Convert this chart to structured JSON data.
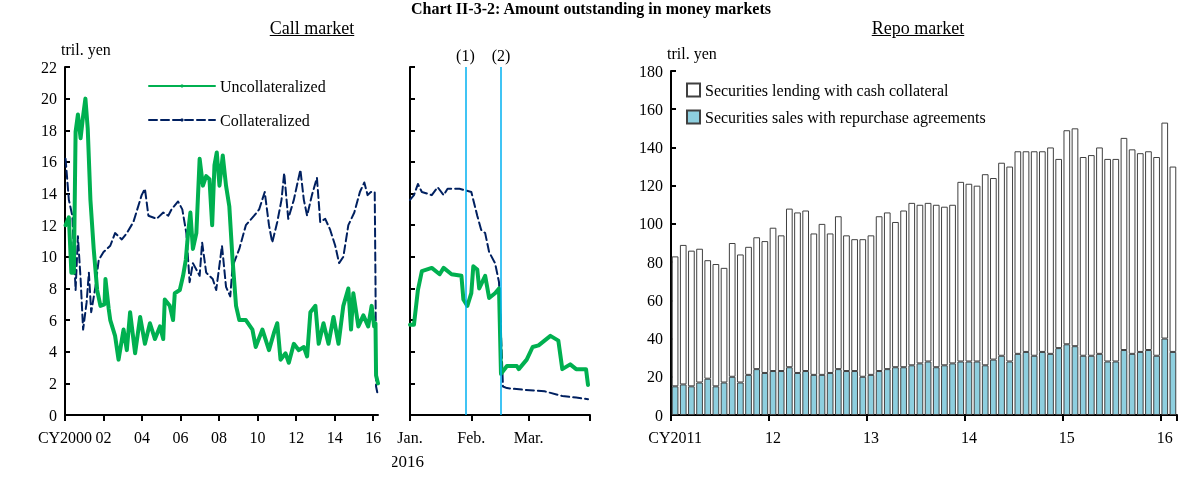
{
  "chart_data": [
    {
      "type": "line",
      "subtitle": "Call market",
      "ylabel": "tril. yen",
      "xlim": [
        2000,
        2016.25
      ],
      "xticks": [
        {
          "value": 2000,
          "label": "CY2000"
        },
        {
          "value": 2002,
          "label": "02"
        },
        {
          "value": 2004,
          "label": "04"
        },
        {
          "value": 2006,
          "label": "06"
        },
        {
          "value": 2008,
          "label": "08"
        },
        {
          "value": 2010,
          "label": "10"
        },
        {
          "value": 2012,
          "label": "12"
        },
        {
          "value": 2014,
          "label": "14"
        },
        {
          "value": 2016,
          "label": "16"
        }
      ],
      "ylim": [
        0,
        22
      ],
      "yticks": [
        0,
        2,
        4,
        6,
        8,
        10,
        12,
        14,
        16,
        18,
        20,
        22
      ],
      "grid": false,
      "legend": "top right",
      "marker": "none",
      "series": [
        {
          "name": "Uncollateralized",
          "color": "#00b050",
          "line_style": "solid",
          "x": [
            2000.03,
            2000.2,
            2000.33,
            2000.46,
            2000.55,
            2000.67,
            2000.81,
            2000.94,
            2001.06,
            2001.18,
            2001.32,
            2001.49,
            2001.67,
            2001.84,
            2002.05,
            2002.1,
            2002.27,
            2002.35,
            2002.6,
            2002.78,
            2003.04,
            2003.21,
            2003.38,
            2003.64,
            2003.9,
            2004.15,
            2004.41,
            2004.67,
            2004.93,
            2005.1,
            2005.18,
            2005.44,
            2005.61,
            2005.7,
            2005.96,
            2006.13,
            2006.27,
            2006.39,
            2006.51,
            2006.64,
            2006.82,
            2006.99,
            2007.16,
            2007.33,
            2007.5,
            2007.64,
            2007.76,
            2007.88,
            2008.02,
            2008.19,
            2008.36,
            2008.53,
            2008.7,
            2008.88,
            2009.05,
            2009.39,
            2009.73,
            2009.9,
            2010.25,
            2010.59,
            2010.85,
            2011.02,
            2011.19,
            2011.45,
            2011.62,
            2011.88,
            2012.14,
            2012.4,
            2012.57,
            2012.74,
            2013.0,
            2013.17,
            2013.42,
            2013.68,
            2013.94,
            2014.2,
            2014.45,
            2014.71,
            2014.85,
            2014.97,
            2015.23,
            2015.49,
            2015.74,
            2015.92,
            2016.05,
            2016.12,
            2016.15,
            2016.25
          ],
          "values": [
            12.0,
            12.5,
            9.0,
            9.0,
            17.9,
            19.0,
            17.5,
            18.9,
            20.0,
            18.1,
            13.6,
            10.5,
            7.9,
            6.9,
            7.0,
            8.6,
            6.7,
            6.0,
            5.0,
            3.5,
            5.4,
            4.1,
            6.5,
            3.9,
            6.2,
            4.5,
            5.8,
            4.8,
            5.6,
            4.8,
            7.3,
            6.9,
            6.0,
            7.7,
            7.9,
            8.8,
            9.8,
            11.5,
            12.8,
            10.5,
            11.5,
            16.2,
            14.5,
            15.1,
            14.9,
            12.0,
            15.8,
            16.6,
            14.5,
            16.4,
            14.5,
            13.2,
            9.8,
            6.9,
            6.0,
            6.0,
            5.4,
            4.3,
            5.4,
            4.1,
            5.2,
            5.8,
            3.5,
            3.9,
            3.3,
            4.5,
            4.1,
            4.3,
            3.7,
            6.5,
            6.9,
            4.5,
            5.8,
            4.5,
            6.2,
            4.5,
            6.9,
            8.0,
            5.4,
            7.7,
            5.6,
            6.3,
            5.6,
            6.9,
            5.6,
            5.8,
            2.5,
            2.0
          ]
        },
        {
          "name": "Collateralized",
          "color": "#002060",
          "line_style": "dashed",
          "x": [
            2000.03,
            2000.2,
            2000.38,
            2000.55,
            2000.67,
            2000.81,
            2000.94,
            2001.12,
            2001.24,
            2001.36,
            2001.58,
            2001.75,
            2002.0,
            2002.35,
            2002.6,
            2002.95,
            2003.21,
            2003.55,
            2003.98,
            2004.15,
            2004.33,
            2004.76,
            2005.1,
            2005.36,
            2005.53,
            2005.87,
            2006.09,
            2006.3,
            2006.47,
            2006.64,
            2006.99,
            2007.12,
            2007.33,
            2007.67,
            2007.85,
            2008.15,
            2008.36,
            2008.58,
            2008.7,
            2009.05,
            2009.39,
            2009.82,
            2010.08,
            2010.37,
            2010.59,
            2010.76,
            2011.02,
            2011.24,
            2011.38,
            2011.59,
            2011.88,
            2012.22,
            2012.4,
            2012.57,
            2012.82,
            2013.08,
            2013.25,
            2013.51,
            2013.77,
            2014.03,
            2014.23,
            2014.45,
            2014.71,
            2015.02,
            2015.31,
            2015.54,
            2015.71,
            2015.88,
            2016.08,
            2016.12,
            2016.15,
            2016.25
          ],
          "values": [
            16.2,
            13.6,
            12.6,
            7.9,
            11.3,
            8.6,
            5.4,
            7.1,
            9.0,
            6.5,
            8.1,
            9.8,
            10.3,
            10.7,
            11.5,
            11.1,
            11.5,
            12.2,
            13.9,
            14.3,
            12.6,
            12.4,
            12.8,
            12.6,
            13.0,
            13.5,
            13.0,
            11.5,
            8.4,
            9.6,
            8.8,
            10.9,
            9.0,
            8.6,
            7.9,
            10.7,
            8.1,
            7.5,
            9.4,
            10.5,
            12.0,
            12.6,
            13.0,
            14.1,
            12.0,
            10.9,
            12.2,
            13.6,
            15.3,
            12.4,
            13.6,
            15.5,
            13.6,
            12.6,
            13.9,
            15.0,
            12.2,
            12.4,
            11.7,
            10.7,
            9.6,
            10.0,
            12.0,
            12.8,
            14.1,
            14.7,
            13.9,
            14.1,
            14.1,
            8.4,
            1.8,
            1.2
          ]
        }
      ]
    },
    {
      "type": "line",
      "title": "Chart II-3-2: Amount outstanding in money markets",
      "xlabel": "2016",
      "xlim": [
        "2016-01-01",
        "2016-04-01"
      ],
      "xticks": [
        {
          "value": "2016-01-01",
          "label": "Jan."
        },
        {
          "value": "2016-02-01",
          "label": "Feb."
        },
        {
          "value": "2016-03-01",
          "label": "Mar."
        },
        {
          "value": "2016-04-01",
          "label": null
        }
      ],
      "ylim": [
        0,
        22
      ],
      "yticks": [
        0,
        2,
        4,
        6,
        8,
        10,
        12,
        14,
        16,
        18,
        20,
        22
      ],
      "tick_labels": "x",
      "grid": false,
      "marker": "none",
      "ref_lines": [
        {
          "axis": "x",
          "value": "2016-01-29",
          "label": "(1)",
          "color": "#00b0f0"
        },
        {
          "axis": "x",
          "value": "2016-02-16",
          "label": "(2)",
          "color": "#00b0f0"
        }
      ],
      "series": [
        {
          "color": "#00b050",
          "line_style": "solid",
          "x": [
            "2016-01-01",
            "2016-01-03",
            "2016-01-05",
            "2016-01-07",
            "2016-01-12",
            "2016-01-16",
            "2016-01-18",
            "2016-01-22",
            "2016-01-27",
            "2016-01-28",
            "2016-01-30",
            "2016-02-01",
            "2016-02-02",
            "2016-02-04",
            "2016-02-05",
            "2016-02-08",
            "2016-02-10",
            "2016-02-13",
            "2016-02-15",
            "2016-02-16",
            "2016-02-19",
            "2016-02-24",
            "2016-02-25",
            "2016-02-29",
            "2016-03-03",
            "2016-03-06",
            "2016-03-09",
            "2016-03-12",
            "2016-03-16",
            "2016-03-18",
            "2016-03-22",
            "2016-03-25",
            "2016-03-30",
            "2016-03-31"
          ],
          "values": [
            5.7,
            5.7,
            7.9,
            9.1,
            9.3,
            8.9,
            9.3,
            8.9,
            8.8,
            7.3,
            6.9,
            7.7,
            9.4,
            9.2,
            8.0,
            8.8,
            7.4,
            7.7,
            8.0,
            2.6,
            3.1,
            3.1,
            2.9,
            3.5,
            4.3,
            4.4,
            4.7,
            5.0,
            4.7,
            2.9,
            3.2,
            2.9,
            2.9,
            1.9
          ]
        },
        {
          "color": "#002060",
          "line_style": "dashed",
          "x": [
            "2016-01-01",
            "2016-01-03",
            "2016-01-05",
            "2016-01-07",
            "2016-01-12",
            "2016-01-15",
            "2016-01-18",
            "2016-01-20",
            "2016-01-26",
            "2016-01-29",
            "2016-02-01",
            "2016-02-04",
            "2016-02-06",
            "2016-02-08",
            "2016-02-10",
            "2016-02-13",
            "2016-02-15",
            "2016-02-17",
            "2016-02-19",
            "2016-02-27",
            "2016-03-09",
            "2016-03-18",
            "2016-03-25",
            "2016-03-31"
          ],
          "values": [
            13.6,
            13.9,
            14.6,
            14.1,
            13.9,
            14.4,
            13.9,
            14.3,
            14.3,
            14.2,
            14.1,
            12.6,
            11.7,
            11.5,
            10.3,
            9.6,
            8.4,
            1.8,
            1.7,
            1.6,
            1.5,
            1.2,
            1.1,
            1.0
          ]
        }
      ]
    },
    {
      "type": "bar",
      "subtitle": "Repo market",
      "ylabel": "tril. yen",
      "stacked": true,
      "ylim": [
        0,
        180
      ],
      "yticks": [
        0,
        20,
        40,
        60,
        80,
        100,
        120,
        140,
        160,
        180
      ],
      "grid": false,
      "legend": "top left",
      "categories": [
        "CY2011",
        null,
        null,
        null,
        null,
        null,
        null,
        null,
        null,
        null,
        null,
        null,
        "12",
        null,
        null,
        null,
        null,
        null,
        null,
        null,
        null,
        null,
        null,
        null,
        "13",
        null,
        null,
        null,
        null,
        null,
        null,
        null,
        null,
        null,
        null,
        null,
        "14",
        null,
        null,
        null,
        null,
        null,
        null,
        null,
        null,
        null,
        null,
        null,
        "15",
        null,
        null,
        null,
        null,
        null,
        null,
        null,
        null,
        null,
        null,
        null,
        "16",
        null
      ],
      "series": [
        {
          "name": "Securities sales with repurchase agreements",
          "color": "#8ecfdf",
          "values": [
            15,
            16,
            15,
            17,
            19,
            15,
            17,
            20,
            17,
            21,
            24,
            22,
            23,
            23,
            25,
            22,
            23,
            21,
            21,
            22,
            24,
            23,
            23,
            20,
            21,
            23,
            24,
            25,
            25,
            26,
            27,
            28,
            25,
            26,
            27,
            28,
            28,
            28,
            26,
            29,
            31,
            28,
            32,
            33,
            31,
            33,
            32,
            35,
            37,
            36,
            31,
            31,
            32,
            28,
            28,
            34,
            32,
            33,
            34,
            31,
            40,
            33
          ]
        },
        {
          "name": "Securities lending with cash collateral",
          "color": "#ffffff",
          "values": [
            68,
            73,
            71,
            70,
            62,
            64,
            60,
            70,
            67,
            67,
            69,
            69,
            75,
            71,
            83,
            84,
            84,
            74,
            79,
            73,
            80,
            71,
            69,
            72,
            73,
            81,
            82,
            76,
            82,
            85,
            83,
            83,
            85,
            83,
            83,
            94,
            93,
            92,
            100,
            95,
            101,
            102,
            106,
            105,
            107,
            105,
            108,
            99,
            112,
            114,
            104,
            105,
            108,
            106,
            106,
            111,
            107,
            104,
            104,
            104,
            113,
            97
          ]
        }
      ]
    }
  ]
}
